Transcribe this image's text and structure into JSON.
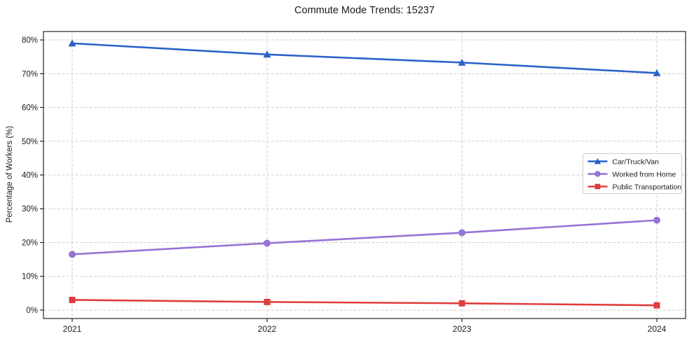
{
  "chart_data": {
    "type": "line",
    "title": "Commute Mode Trends: 15237",
    "xlabel": "",
    "ylabel": "Percentage of Workers (%)",
    "x": [
      2021,
      2022,
      2023,
      2024
    ],
    "x_tick_labels": [
      "2021",
      "2022",
      "2023",
      "2024"
    ],
    "y_ticks": [
      0,
      10,
      20,
      30,
      40,
      50,
      60,
      70,
      80
    ],
    "y_tick_suffix": "%",
    "ylim": [
      -2.5,
      82.5
    ],
    "grid": true,
    "grid_style": "dashed",
    "grid_color": "#cfcfcf",
    "spine_color": "#262626",
    "legend_position": "center-right",
    "series": [
      {
        "name": "Car/Truck/Van",
        "color": "#2a62c9",
        "marker": "triangle",
        "values": [
          79.0,
          75.7,
          73.3,
          70.2
        ]
      },
      {
        "name": "Worked from Home",
        "color": "#9673d4",
        "marker": "circle",
        "values": [
          16.5,
          19.8,
          22.9,
          26.6
        ]
      },
      {
        "name": "Public Transportation",
        "color": "#e03c3c",
        "marker": "square",
        "values": [
          3.0,
          2.4,
          2.0,
          1.4
        ]
      }
    ]
  }
}
